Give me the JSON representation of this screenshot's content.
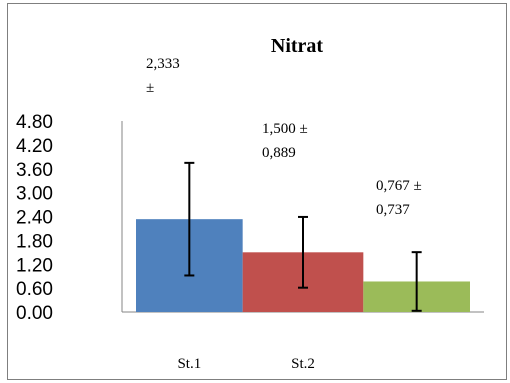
{
  "chart_data": {
    "type": "bar",
    "title": "Nitrat",
    "categories": [
      "St.1",
      "St.2",
      ""
    ],
    "values": [
      2.333,
      1.5,
      0.767
    ],
    "errors": [
      1.415,
      0.889,
      0.737
    ],
    "data_labels": [
      {
        "line1": "2,333",
        "line2": "±"
      },
      {
        "line1": "1,500 ±",
        "line2": "0,889"
      },
      {
        "line1": "0,767 ±",
        "line2": "0,737"
      }
    ],
    "colors": [
      "#4f81bd",
      "#c0504d",
      "#9bbb59"
    ],
    "yticks": [
      "0.00",
      "0.60",
      "1.20",
      "1.80",
      "2.40",
      "3.00",
      "3.60",
      "4.20",
      "4.80"
    ],
    "ylim": [
      0,
      4.8
    ],
    "xlabel": "",
    "ylabel": "",
    "grid": false,
    "legend": "none"
  }
}
